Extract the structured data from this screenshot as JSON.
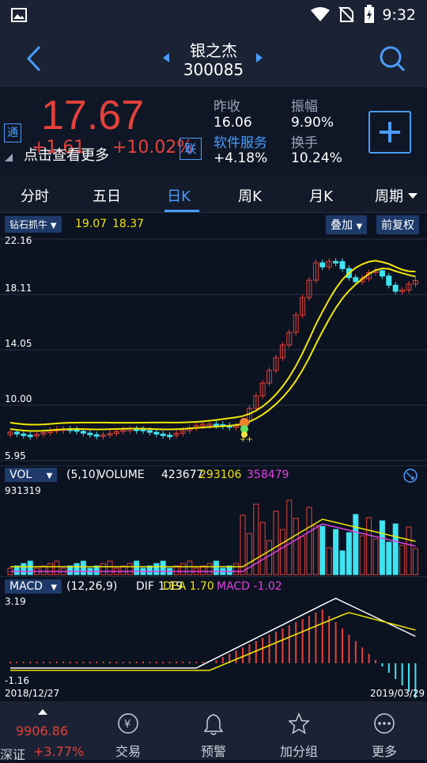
{
  "status_bar": {
    "time": "9:32"
  },
  "header": {
    "name": "银之杰",
    "code": "300085"
  },
  "quote": {
    "tong_badge": "通",
    "price": "17.67",
    "change": "+1.61",
    "change_pct": "+10.02%",
    "lian_badge": "联",
    "tap_hint": "点击查看更多",
    "fields": [
      {
        "label": "昨收",
        "value": "16.06"
      },
      {
        "label": "振幅",
        "value": "9.90%"
      },
      {
        "label": "软件服务",
        "value": "+4.18%"
      },
      {
        "label": "换手",
        "value": "10.24%"
      }
    ],
    "add_icon": "plus-icon"
  },
  "tabs": [
    "分时",
    "五日",
    "日K",
    "周K",
    "月K",
    "周期"
  ],
  "active_tab": "日K",
  "kline": {
    "indicator": "钻石抓牛",
    "ma1": "19.07",
    "ma2": "18.37",
    "overlay_btn": "叠加",
    "adjust_btn": "前复权",
    "y_labels": [
      "22.16",
      "18.11",
      "14.05",
      "10.00",
      "5.95"
    ]
  },
  "volume": {
    "selector": "VOL",
    "params": "(5,10)",
    "name": "VOLUME",
    "value": "423677",
    "ma5": "293106",
    "ma10": "358479",
    "max": "931319"
  },
  "macd": {
    "selector": "MACD",
    "params": "(12,26,9)",
    "dif_label": "DIF",
    "dif": "1.19",
    "dea_label": "DEA",
    "dea": "1.70",
    "macd_label": "MACD",
    "macd": "-1.02",
    "y_top": "3.19",
    "y_bottom": "-1.16",
    "date_start": "2018/12/27",
    "date_end": "2019/03/29"
  },
  "bottom_nav": {
    "index_value": "9906.86",
    "index_name": "深证",
    "index_change": "+3.77%",
    "items": [
      {
        "label": "交易",
        "icon": "yen-exchange-icon"
      },
      {
        "label": "预警",
        "icon": "bell-icon"
      },
      {
        "label": "加分组",
        "icon": "star-icon"
      },
      {
        "label": "更多",
        "icon": "more-dots-icon"
      }
    ]
  },
  "colors": {
    "up": "#e5413a",
    "down": "#3fe3f0",
    "ma": "#f2e600",
    "macd_line": "#e040e0",
    "accent": "#4a9cff"
  }
}
